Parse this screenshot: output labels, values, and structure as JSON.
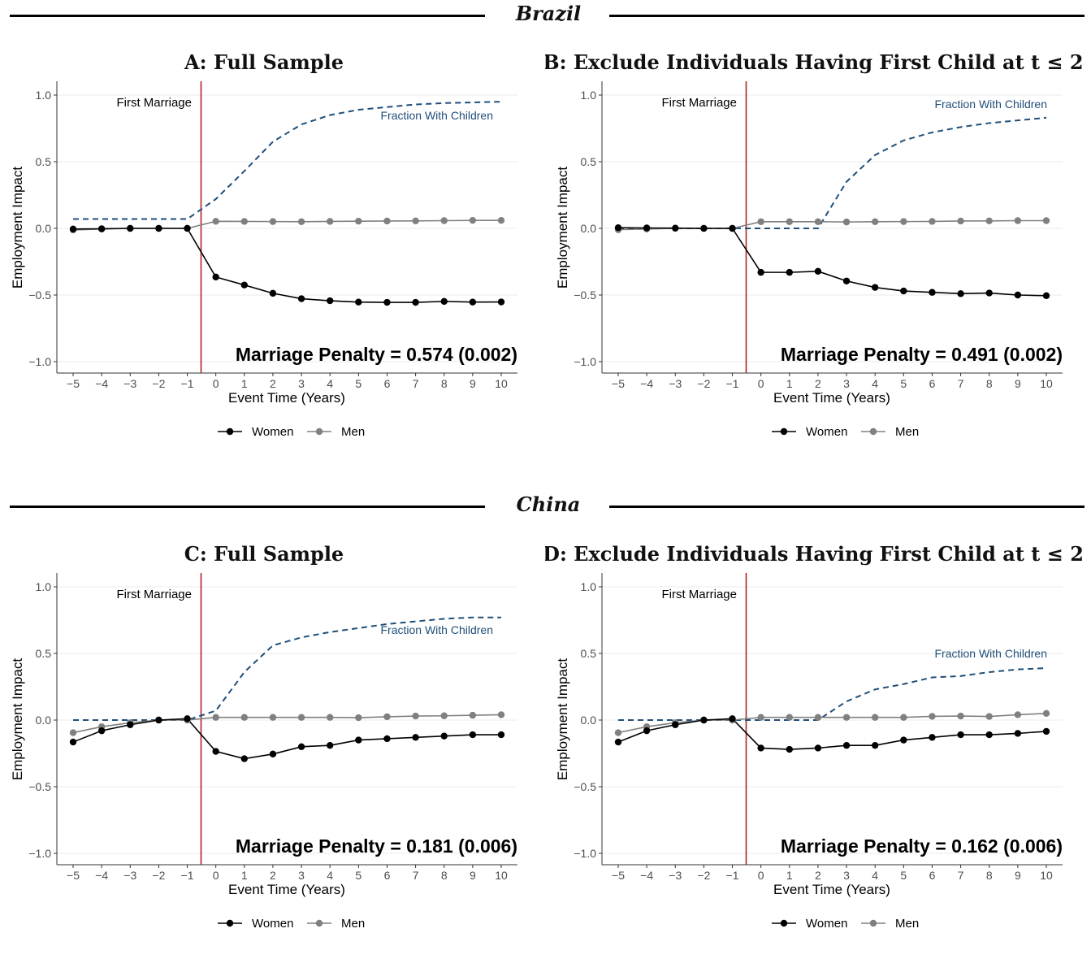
{
  "sections": [
    {
      "title": "Brazil"
    },
    {
      "title": "China"
    }
  ],
  "legend": {
    "women_label": "Women",
    "men_label": "Men"
  },
  "colors": {
    "women": "#000000",
    "men": "#808080",
    "children": "#1f4e79",
    "event_line": "#b22222",
    "grid": "#ebebeb"
  },
  "chart_data": [
    {
      "type": "line",
      "title": "A: Full Sample",
      "xlabel": "Event Time (Years)",
      "ylabel": "Employment Impact",
      "ylim": [
        -1.0,
        1.0
      ],
      "x": [
        -5,
        -4,
        -3,
        -2,
        -1,
        0,
        1,
        2,
        3,
        4,
        5,
        6,
        7,
        8,
        9,
        10
      ],
      "event_annotation": "First Marriage",
      "children_label": "Fraction With Children",
      "penalty_text": "Marriage Penalty = 0.574 (0.002)",
      "series": [
        {
          "name": "Women",
          "values": [
            -0.005,
            -0.003,
            0.0,
            0.0,
            0.0,
            -0.365,
            -0.425,
            -0.487,
            -0.528,
            -0.543,
            -0.553,
            -0.555,
            -0.555,
            -0.548,
            -0.553,
            -0.552
          ]
        },
        {
          "name": "Men",
          "values": [
            -0.012,
            -0.005,
            0.0,
            0.0,
            0.0,
            0.053,
            0.052,
            0.051,
            0.05,
            0.052,
            0.054,
            0.055,
            0.056,
            0.058,
            0.06,
            0.06
          ]
        },
        {
          "name": "Fraction With Children",
          "values": [
            0.07,
            0.07,
            0.07,
            0.07,
            0.07,
            0.22,
            0.43,
            0.65,
            0.78,
            0.85,
            0.89,
            0.91,
            0.93,
            0.94,
            0.945,
            0.95
          ]
        }
      ]
    },
    {
      "type": "line",
      "title": "B: Exclude Individuals Having First Child at t ≤ 2",
      "xlabel": "Event Time (Years)",
      "ylabel": "Employment Impact",
      "ylim": [
        -1.0,
        1.0
      ],
      "x": [
        -5,
        -4,
        -3,
        -2,
        -1,
        0,
        1,
        2,
        3,
        4,
        5,
        6,
        7,
        8,
        9,
        10
      ],
      "event_annotation": "First Marriage",
      "children_label": "Fraction With Children",
      "penalty_text": "Marriage Penalty = 0.491 (0.002)",
      "series": [
        {
          "name": "Women",
          "values": [
            0.005,
            0.003,
            0.002,
            0.0,
            0.0,
            -0.33,
            -0.33,
            -0.322,
            -0.395,
            -0.443,
            -0.47,
            -0.48,
            -0.49,
            -0.485,
            -0.5,
            -0.505
          ]
        },
        {
          "name": "Men",
          "values": [
            -0.01,
            -0.005,
            0.0,
            0.0,
            0.0,
            0.05,
            0.05,
            0.05,
            0.048,
            0.05,
            0.051,
            0.052,
            0.055,
            0.056,
            0.058,
            0.058
          ]
        },
        {
          "name": "Fraction With Children",
          "values": [
            0.0,
            0.0,
            0.0,
            0.0,
            0.0,
            0.0,
            0.0,
            0.0,
            0.35,
            0.55,
            0.66,
            0.72,
            0.76,
            0.79,
            0.81,
            0.83
          ]
        }
      ]
    },
    {
      "type": "line",
      "title": "C: Full Sample",
      "xlabel": "Event Time (Years)",
      "ylabel": "Employment Impact",
      "ylim": [
        -1.0,
        1.0
      ],
      "x": [
        -5,
        -4,
        -3,
        -2,
        -1,
        0,
        1,
        2,
        3,
        4,
        5,
        6,
        7,
        8,
        9,
        10
      ],
      "event_annotation": "First Marriage",
      "children_label": "Fraction With Children",
      "penalty_text": "Marriage Penalty = 0.181 (0.006)",
      "series": [
        {
          "name": "Women",
          "values": [
            -0.165,
            -0.08,
            -0.035,
            0.0,
            0.01,
            -0.235,
            -0.29,
            -0.255,
            -0.2,
            -0.19,
            -0.15,
            -0.14,
            -0.13,
            -0.12,
            -0.11,
            -0.11
          ]
        },
        {
          "name": "Men",
          "values": [
            -0.095,
            -0.05,
            -0.02,
            0.0,
            0.0,
            0.02,
            0.02,
            0.02,
            0.02,
            0.02,
            0.018,
            0.025,
            0.03,
            0.032,
            0.036,
            0.04
          ]
        },
        {
          "name": "Fraction With Children",
          "values": [
            0.0,
            0.0,
            0.0,
            0.0,
            0.0,
            0.07,
            0.36,
            0.56,
            0.62,
            0.66,
            0.69,
            0.72,
            0.74,
            0.76,
            0.77,
            0.77
          ]
        }
      ]
    },
    {
      "type": "line",
      "title": "D: Exclude Individuals Having First Child at t ≤ 2",
      "xlabel": "Event Time (Years)",
      "ylabel": "Employment Impact",
      "ylim": [
        -1.0,
        1.0
      ],
      "x": [
        -5,
        -4,
        -3,
        -2,
        -1,
        0,
        1,
        2,
        3,
        4,
        5,
        6,
        7,
        8,
        9,
        10
      ],
      "event_annotation": "First Marriage",
      "children_label": "Fraction With Children",
      "penalty_text": "Marriage Penalty = 0.162 (0.006)",
      "series": [
        {
          "name": "Women",
          "values": [
            -0.165,
            -0.08,
            -0.035,
            0.0,
            0.01,
            -0.21,
            -0.22,
            -0.21,
            -0.19,
            -0.19,
            -0.15,
            -0.13,
            -0.11,
            -0.11,
            -0.1,
            -0.085
          ]
        },
        {
          "name": "Men",
          "values": [
            -0.095,
            -0.05,
            -0.02,
            0.0,
            0.0,
            0.02,
            0.02,
            0.02,
            0.02,
            0.02,
            0.02,
            0.028,
            0.03,
            0.027,
            0.04,
            0.05
          ]
        },
        {
          "name": "Fraction With Children",
          "values": [
            0.0,
            0.0,
            0.0,
            0.0,
            0.0,
            0.0,
            0.0,
            0.0,
            0.14,
            0.23,
            0.27,
            0.32,
            0.33,
            0.36,
            0.38,
            0.39
          ]
        }
      ]
    }
  ]
}
